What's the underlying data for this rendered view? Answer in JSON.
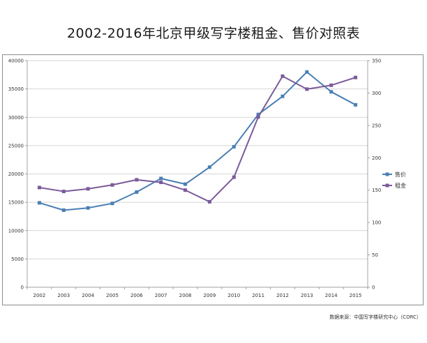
{
  "page": {
    "title": "2002-2016年北京甲级写字楼租金、售价对照表",
    "source": "数据来源：中国写字楼研究中心（CORC）"
  },
  "chart_data": {
    "type": "line",
    "title": "2002-2016年北京甲级写字楼租金、售价对照表",
    "categories": [
      "2002",
      "2003",
      "2004",
      "2005",
      "2006",
      "2007",
      "2008",
      "2009",
      "2010",
      "2011",
      "2012",
      "2013",
      "2014",
      "2015"
    ],
    "series": [
      {
        "name": "售价",
        "axis": "left",
        "color": "#4a7fb5",
        "marker": "square",
        "values": [
          14900,
          13600,
          14000,
          14800,
          16800,
          19200,
          18200,
          21200,
          24800,
          30500,
          33700,
          38000,
          34500,
          32200
        ]
      },
      {
        "name": "租金",
        "axis": "right",
        "color": "#7b5a9a",
        "marker": "square",
        "values": [
          154,
          148,
          152,
          158,
          166,
          162,
          150,
          132,
          170,
          263,
          326,
          306,
          312,
          324
        ]
      }
    ],
    "y_left": {
      "min": 0,
      "max": 40000,
      "step": 5000,
      "ticks": [
        "0",
        "5000",
        "10000",
        "15000",
        "20000",
        "25000",
        "30000",
        "35000",
        "40000"
      ]
    },
    "y_right": {
      "min": 0,
      "max": 350,
      "step": 50,
      "ticks": [
        "0",
        "50",
        "100",
        "150",
        "200",
        "250",
        "300",
        "350"
      ]
    },
    "grid": true,
    "legend_position": "right"
  }
}
